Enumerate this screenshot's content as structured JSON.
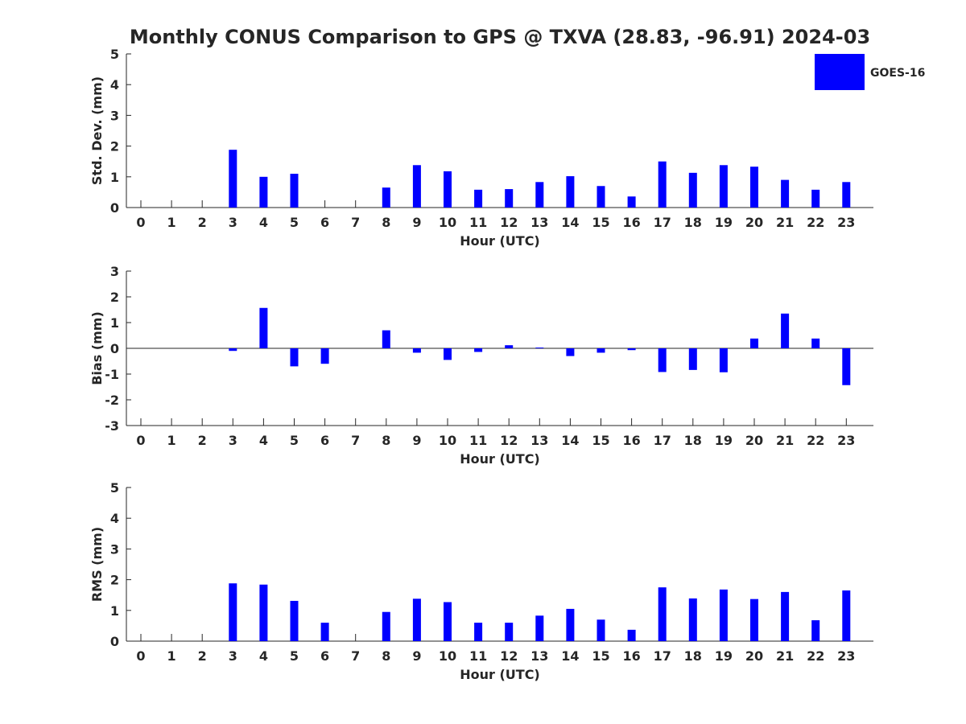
{
  "chart_data": {
    "type": "bar",
    "title": "Monthly CONUS Comparison to GPS @ TXVA (28.83, -96.91) 2024-03",
    "legend": {
      "entries": [
        "GOES-16"
      ],
      "placement": "top-right",
      "color": "#0000ff"
    },
    "categories": [
      "0",
      "1",
      "2",
      "3",
      "4",
      "5",
      "6",
      "7",
      "8",
      "9",
      "10",
      "11",
      "12",
      "13",
      "14",
      "15",
      "16",
      "17",
      "18",
      "19",
      "20",
      "21",
      "22",
      "23"
    ],
    "panels": [
      {
        "ylabel": "Std. Dev. (mm)",
        "xlabel": "Hour (UTC)",
        "ylim": [
          0,
          5
        ],
        "yticks": [
          "0",
          "1",
          "2",
          "3",
          "4",
          "5"
        ],
        "series": [
          {
            "name": "GOES-16",
            "color": "#0000ff",
            "values": [
              null,
              null,
              null,
              1.88,
              1.0,
              1.1,
              null,
              null,
              0.65,
              1.38,
              1.18,
              0.58,
              0.6,
              0.83,
              1.02,
              0.7,
              0.36,
              1.5,
              1.13,
              1.38,
              1.33,
              0.9,
              0.58,
              0.83
            ]
          }
        ]
      },
      {
        "ylabel": "Bias (mm)",
        "xlabel": "Hour (UTC)",
        "ylim": [
          -3,
          3
        ],
        "yticks": [
          "-3",
          "-2",
          "-1",
          "0",
          "1",
          "2",
          "3"
        ],
        "series": [
          {
            "name": "GOES-16",
            "color": "#0000ff",
            "values": [
              null,
              null,
              null,
              -0.1,
              1.57,
              -0.7,
              -0.6,
              null,
              0.7,
              -0.17,
              -0.45,
              -0.14,
              0.12,
              0.03,
              -0.3,
              -0.17,
              -0.07,
              -0.92,
              -0.84,
              -0.93,
              0.38,
              1.35,
              0.38,
              -1.43
            ]
          }
        ]
      },
      {
        "ylabel": "RMS (mm)",
        "xlabel": "Hour (UTC)",
        "ylim": [
          0,
          5
        ],
        "yticks": [
          "0",
          "1",
          "2",
          "3",
          "4",
          "5"
        ],
        "series": [
          {
            "name": "GOES-16",
            "color": "#0000ff",
            "values": [
              null,
              null,
              null,
              1.88,
              1.84,
              1.31,
              0.6,
              null,
              0.95,
              1.38,
              1.27,
              0.6,
              0.6,
              0.83,
              1.05,
              0.7,
              0.37,
              1.75,
              1.39,
              1.68,
              1.37,
              1.6,
              0.68,
              1.65
            ]
          }
        ]
      }
    ]
  }
}
